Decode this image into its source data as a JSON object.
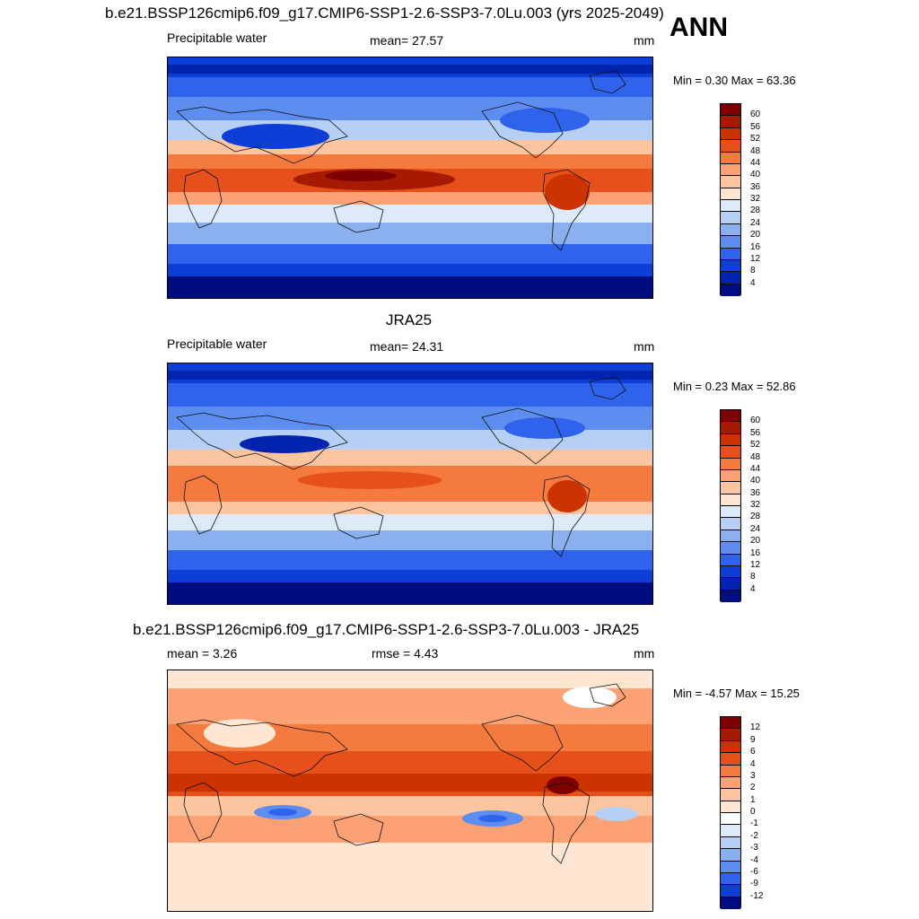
{
  "season": "ANN",
  "panels": [
    {
      "title": "b.e21.BSSP126cmip6.f09_g17.CMIP6-SSP1-2.6-SSP3-7.0Lu.003 (yrs 2025-2049)",
      "left_label": "Precipitable water",
      "center_label": "mean=  27.57",
      "units": "mm",
      "min_max": "Min =   0.30 Max =  63.36",
      "colorbar": {
        "labels": [
          "60",
          "56",
          "52",
          "48",
          "44",
          "40",
          "36",
          "32",
          "28",
          "24",
          "20",
          "16",
          "12",
          "8",
          "4"
        ],
        "colors": [
          "#7f0000",
          "#a61a00",
          "#cc3300",
          "#e6501a",
          "#f57a3d",
          "#fca173",
          "#fdc4a0",
          "#fee6d2",
          "#dceaf9",
          "#b6d0f5",
          "#8bb0f0",
          "#5e8df0",
          "#2f63eb",
          "#0d3fd6",
          "#0024b0",
          "#000d80"
        ]
      }
    },
    {
      "title": "JRA25",
      "left_label": "Precipitable water",
      "center_label": "mean=  24.31",
      "units": "mm",
      "min_max": "Min =   0.23 Max =  52.86",
      "colorbar": {
        "labels": [
          "60",
          "56",
          "52",
          "48",
          "44",
          "40",
          "36",
          "32",
          "28",
          "24",
          "20",
          "16",
          "12",
          "8",
          "4"
        ],
        "colors": [
          "#7f0000",
          "#a61a00",
          "#cc3300",
          "#e6501a",
          "#f57a3d",
          "#fca173",
          "#fdc4a0",
          "#fee6d2",
          "#dceaf9",
          "#b6d0f5",
          "#8bb0f0",
          "#5e8df0",
          "#2f63eb",
          "#0d3fd6",
          "#0024b0",
          "#000d80"
        ]
      }
    },
    {
      "title": "b.e21.BSSP126cmip6.f09_g17.CMIP6-SSP1-2.6-SSP3-7.0Lu.003 - JRA25",
      "left_label": "mean =   3.26",
      "center_label": "rmse =   4.43",
      "units": "mm",
      "min_max": "Min =  -4.57 Max =  15.25",
      "colorbar": {
        "labels": [
          "12",
          "9",
          "6",
          "4",
          "3",
          "2",
          "1",
          "0",
          "-1",
          "-2",
          "-3",
          "-4",
          "-6",
          "-9",
          "-12"
        ],
        "colors": [
          "#7f0000",
          "#a61a00",
          "#cc3300",
          "#e6501a",
          "#f57a3d",
          "#fca173",
          "#fdc4a0",
          "#fee6d2",
          "#ffffff",
          "#dceaf9",
          "#b6d0f5",
          "#8bb0f0",
          "#5e8df0",
          "#2f63eb",
          "#0d3fd6",
          "#000d80"
        ]
      }
    }
  ]
}
